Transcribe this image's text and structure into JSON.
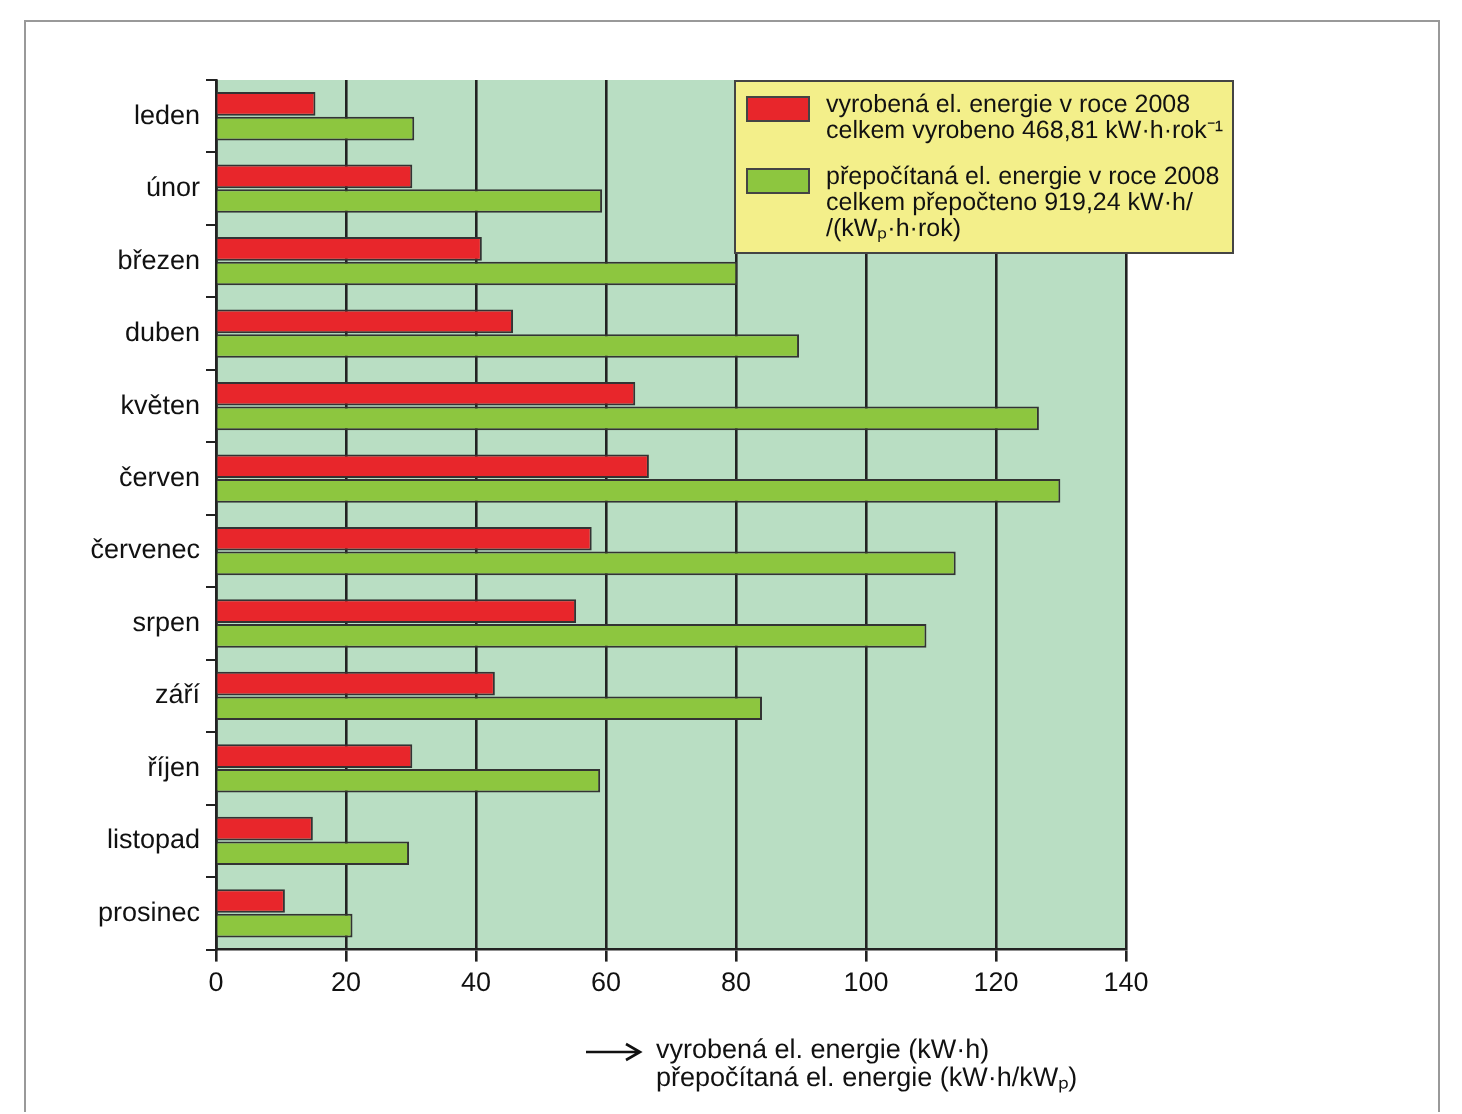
{
  "chart_data": {
    "type": "bar",
    "orientation": "horizontal",
    "xlabel": "vyrobená el. energie (kW·h)\npřepočítaná el. energie (kW·h/kWₚ)",
    "categories": [
      "leden",
      "únor",
      "březen",
      "duben",
      "květen",
      "červen",
      "červenec",
      "srpen",
      "září",
      "říjen",
      "listopad",
      "prosinec"
    ],
    "series": [
      {
        "name": "vyrobená el. energie v roce 2008\ncelkem vyrobeno 468,81 kW·h·rok⁻¹",
        "color": "#e8262b",
        "values": [
          15.3,
          30.2,
          40.9,
          45.7,
          64.5,
          66.6,
          57.8,
          55.4,
          42.9,
          30.2,
          14.9,
          10.6
        ]
      },
      {
        "name": "přepočítaná el. energie v roce 2008\ncelkem přepočteno 919,24 kW·h/\n/(kWₚ·h·rok)",
        "color": "#8dc63f",
        "values": [
          30.5,
          59.4,
          80.2,
          89.7,
          126.6,
          129.9,
          113.8,
          109.3,
          84,
          59.1,
          29.7,
          21
        ]
      }
    ],
    "xlim": [
      0,
      140
    ],
    "xticks": [
      0,
      20,
      40,
      60,
      80,
      100,
      120,
      140
    ],
    "grid": "x",
    "legend": "top right"
  }
}
